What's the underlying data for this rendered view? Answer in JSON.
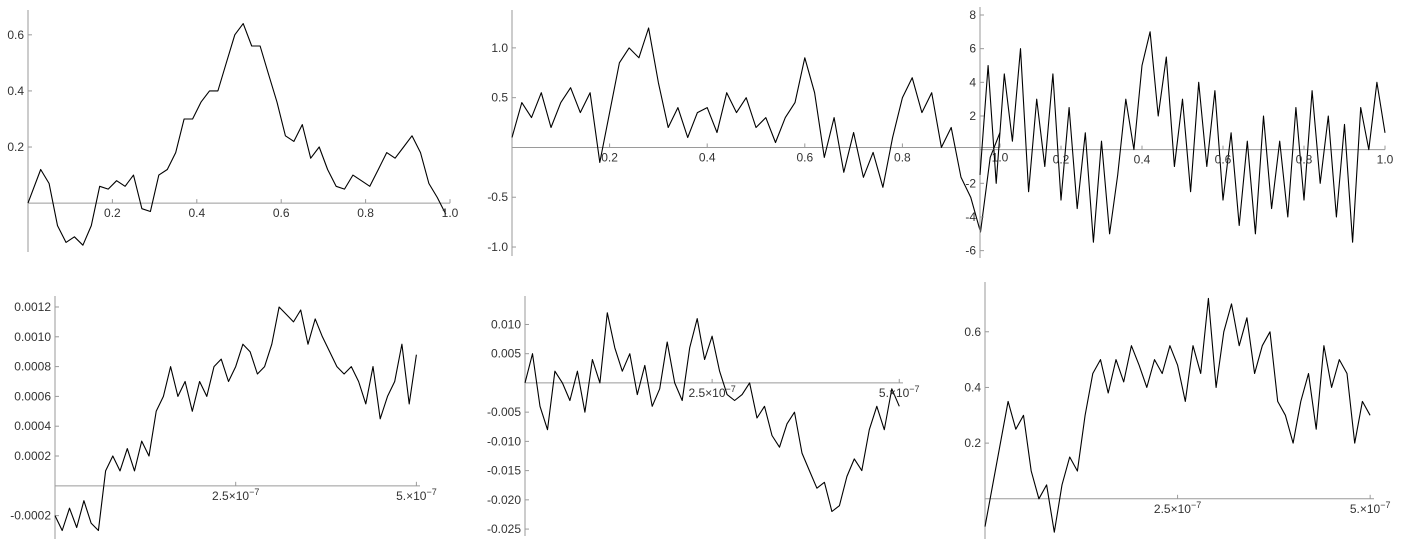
{
  "chart_data": [
    {
      "type": "line",
      "xlim": [
        0,
        1.0
      ],
      "ylim": [
        -0.16,
        0.66
      ],
      "x_axis_at_y": 0,
      "x_ticks": [
        0.2,
        0.4,
        0.6,
        0.8,
        1.0
      ],
      "x_tick_labels": [
        "0.2",
        "0.4",
        "0.6",
        "0.8",
        "1.0"
      ],
      "y_ticks": [
        0.2,
        0.4,
        0.6
      ],
      "y_tick_labels": [
        "0.2",
        "0.4",
        "0.6"
      ],
      "series": [
        {
          "x": [
            0.0,
            0.03,
            0.05,
            0.07,
            0.09,
            0.11,
            0.13,
            0.15,
            0.17,
            0.19,
            0.21,
            0.23,
            0.25,
            0.27,
            0.29,
            0.31,
            0.33,
            0.35,
            0.37,
            0.39,
            0.41,
            0.43,
            0.45,
            0.47,
            0.49,
            0.51,
            0.53,
            0.55,
            0.57,
            0.59,
            0.61,
            0.63,
            0.65,
            0.67,
            0.69,
            0.71,
            0.73,
            0.75,
            0.77,
            0.79,
            0.81,
            0.83,
            0.85,
            0.87,
            0.89,
            0.91,
            0.93,
            0.95,
            0.97,
            0.99
          ],
          "y": [
            0.0,
            0.12,
            0.07,
            -0.08,
            -0.14,
            -0.12,
            -0.15,
            -0.08,
            0.06,
            0.05,
            0.08,
            0.06,
            0.1,
            -0.02,
            -0.03,
            0.1,
            0.12,
            0.18,
            0.3,
            0.3,
            0.36,
            0.4,
            0.4,
            0.5,
            0.6,
            0.64,
            0.56,
            0.56,
            0.46,
            0.36,
            0.24,
            0.22,
            0.28,
            0.16,
            0.2,
            0.12,
            0.06,
            0.05,
            0.1,
            0.08,
            0.06,
            0.12,
            0.18,
            0.16,
            0.2,
            0.24,
            0.18,
            0.07,
            0.02,
            -0.04
          ]
        }
      ]
    },
    {
      "type": "line",
      "xlim": [
        0,
        1.0
      ],
      "ylim": [
        -1.05,
        1.3
      ],
      "x_axis_at_y": 0,
      "x_ticks": [
        0.2,
        0.4,
        0.6,
        0.8,
        1.0
      ],
      "x_tick_labels": [
        "0.2",
        "0.4",
        "0.6",
        "0.8",
        "1.0"
      ],
      "y_ticks": [
        -1.0,
        -0.5,
        0.5,
        1.0
      ],
      "y_tick_labels": [
        "-1.0",
        "-0.5",
        "0.5",
        "1.0"
      ],
      "series": [
        {
          "x": [
            0.0,
            0.02,
            0.04,
            0.06,
            0.08,
            0.1,
            0.12,
            0.14,
            0.16,
            0.18,
            0.2,
            0.22,
            0.24,
            0.26,
            0.28,
            0.3,
            0.32,
            0.34,
            0.36,
            0.38,
            0.4,
            0.42,
            0.44,
            0.46,
            0.48,
            0.5,
            0.52,
            0.54,
            0.56,
            0.58,
            0.6,
            0.62,
            0.64,
            0.66,
            0.68,
            0.7,
            0.72,
            0.74,
            0.76,
            0.78,
            0.8,
            0.82,
            0.84,
            0.86,
            0.88,
            0.9,
            0.92,
            0.94,
            0.96,
            0.98,
            1.0
          ],
          "y": [
            0.1,
            0.45,
            0.3,
            0.55,
            0.2,
            0.45,
            0.6,
            0.35,
            0.55,
            -0.15,
            0.35,
            0.85,
            1.0,
            0.9,
            1.2,
            0.65,
            0.2,
            0.4,
            0.1,
            0.35,
            0.4,
            0.15,
            0.55,
            0.35,
            0.5,
            0.2,
            0.3,
            0.05,
            0.3,
            0.45,
            0.9,
            0.55,
            -0.1,
            0.3,
            -0.25,
            0.15,
            -0.3,
            -0.05,
            -0.4,
            0.1,
            0.5,
            0.7,
            0.35,
            0.55,
            0.0,
            0.2,
            -0.3,
            -0.5,
            -0.85,
            -0.1,
            0.15
          ]
        }
      ]
    },
    {
      "type": "line",
      "xlim": [
        0,
        1.0
      ],
      "ylim": [
        -6.2,
        8.0
      ],
      "x_axis_at_y": 0,
      "x_ticks": [
        0.2,
        0.4,
        0.6,
        0.8,
        1.0
      ],
      "x_tick_labels": [
        "0.2",
        "0.4",
        "0.6",
        "0.8",
        "1.0"
      ],
      "y_ticks": [
        -6,
        -4,
        -2,
        2,
        4,
        6,
        8
      ],
      "y_tick_labels": [
        "-6",
        "-4",
        "-2",
        "2",
        "4",
        "6",
        "8"
      ],
      "series": [
        {
          "x": [
            0.0,
            0.02,
            0.04,
            0.06,
            0.08,
            0.1,
            0.12,
            0.14,
            0.16,
            0.18,
            0.2,
            0.22,
            0.24,
            0.26,
            0.28,
            0.3,
            0.32,
            0.34,
            0.36,
            0.38,
            0.4,
            0.42,
            0.44,
            0.46,
            0.48,
            0.5,
            0.52,
            0.54,
            0.56,
            0.58,
            0.6,
            0.62,
            0.64,
            0.66,
            0.68,
            0.7,
            0.72,
            0.74,
            0.76,
            0.78,
            0.8,
            0.82,
            0.84,
            0.86,
            0.88,
            0.9,
            0.92,
            0.94,
            0.96,
            0.98,
            1.0
          ],
          "y": [
            -1.5,
            5.0,
            -2.0,
            4.5,
            0.5,
            6.0,
            -2.5,
            3.0,
            -1.0,
            4.5,
            -3.0,
            2.5,
            -3.5,
            1.0,
            -5.5,
            0.5,
            -5.0,
            -1.5,
            3.0,
            0.0,
            5.0,
            7.0,
            2.0,
            5.5,
            -1.0,
            3.0,
            -2.5,
            4.0,
            -1.0,
            3.5,
            -3.0,
            1.0,
            -4.5,
            0.5,
            -5.0,
            2.0,
            -3.5,
            0.5,
            -4.0,
            2.5,
            -3.0,
            3.5,
            -2.0,
            2.0,
            -4.0,
            1.5,
            -5.5,
            2.5,
            0.0,
            4.0,
            1.0
          ]
        }
      ]
    },
    {
      "type": "line",
      "xlim": [
        0,
        5.05e-07
      ],
      "ylim": [
        -0.00033,
        0.00122
      ],
      "x_axis_at_y": 0,
      "x_ticks": [
        2.5e-07,
        5e-07
      ],
      "x_tick_labels": [
        "2.5×10",
        "5.×10"
      ],
      "x_tick_exponent": "−7",
      "y_ticks": [
        -0.0002,
        0.0002,
        0.0004,
        0.0006,
        0.0008,
        0.001,
        0.0012
      ],
      "y_tick_labels": [
        "-0.0002",
        "0.0002",
        "0.0004",
        "0.0006",
        "0.0008",
        "0.0010",
        "0.0012"
      ],
      "series": [
        {
          "x": [
            0.0,
            1e-08,
            2e-08,
            3e-08,
            4e-08,
            5e-08,
            6e-08,
            7e-08,
            8e-08,
            9e-08,
            1e-07,
            1.1e-07,
            1.2e-07,
            1.3e-07,
            1.4e-07,
            1.5e-07,
            1.6e-07,
            1.7e-07,
            1.8e-07,
            1.9e-07,
            2e-07,
            2.1e-07,
            2.2e-07,
            2.3e-07,
            2.4e-07,
            2.5e-07,
            2.6e-07,
            2.7e-07,
            2.8e-07,
            2.9e-07,
            3e-07,
            3.1e-07,
            3.2e-07,
            3.3e-07,
            3.4e-07,
            3.5e-07,
            3.6e-07,
            3.7e-07,
            3.8e-07,
            3.9e-07,
            4e-07,
            4.1e-07,
            4.2e-07,
            4.3e-07,
            4.4e-07,
            4.5e-07,
            4.6e-07,
            4.7e-07,
            4.8e-07,
            4.9e-07,
            5e-07
          ],
          "y": [
            -0.0002,
            -0.0003,
            -0.00015,
            -0.00028,
            -0.0001,
            -0.00025,
            -0.0003,
            0.0001,
            0.0002,
            0.0001,
            0.00025,
            0.0001,
            0.0003,
            0.0002,
            0.0005,
            0.0006,
            0.0008,
            0.0006,
            0.0007,
            0.0005,
            0.0007,
            0.0006,
            0.0008,
            0.00085,
            0.0007,
            0.0008,
            0.00095,
            0.0009,
            0.00075,
            0.0008,
            0.00095,
            0.0012,
            0.00115,
            0.0011,
            0.00118,
            0.00095,
            0.00112,
            0.001,
            0.0009,
            0.0008,
            0.00075,
            0.0008,
            0.0007,
            0.00055,
            0.0008,
            0.00045,
            0.0006,
            0.0007,
            0.00095,
            0.00055,
            0.00088
          ]
        }
      ]
    },
    {
      "type": "line",
      "xlim": [
        0,
        5.05e-07
      ],
      "ylim": [
        -0.0255,
        0.0135
      ],
      "x_axis_at_y": 0,
      "x_ticks": [
        2.5e-07,
        5e-07
      ],
      "x_tick_labels": [
        "2.5×10",
        "5.×10"
      ],
      "x_tick_exponent": "−7",
      "y_ticks": [
        -0.025,
        -0.02,
        -0.015,
        -0.01,
        -0.005,
        0.005,
        0.01
      ],
      "y_tick_labels": [
        "-0.025",
        "-0.020",
        "-0.015",
        "-0.010",
        "-0.005",
        "0.005",
        "0.010"
      ],
      "series": [
        {
          "x": [
            0.0,
            1e-08,
            2e-08,
            3e-08,
            4e-08,
            5e-08,
            6e-08,
            7e-08,
            8e-08,
            9e-08,
            1e-07,
            1.1e-07,
            1.2e-07,
            1.3e-07,
            1.4e-07,
            1.5e-07,
            1.6e-07,
            1.7e-07,
            1.8e-07,
            1.9e-07,
            2e-07,
            2.1e-07,
            2.2e-07,
            2.3e-07,
            2.4e-07,
            2.5e-07,
            2.6e-07,
            2.7e-07,
            2.8e-07,
            2.9e-07,
            3e-07,
            3.1e-07,
            3.2e-07,
            3.3e-07,
            3.4e-07,
            3.5e-07,
            3.6e-07,
            3.7e-07,
            3.8e-07,
            3.9e-07,
            4e-07,
            4.1e-07,
            4.2e-07,
            4.3e-07,
            4.4e-07,
            4.5e-07,
            4.6e-07,
            4.7e-07,
            4.8e-07,
            4.9e-07,
            5e-07
          ],
          "y": [
            0.0,
            0.005,
            -0.004,
            -0.008,
            0.002,
            0.0,
            -0.003,
            0.002,
            -0.005,
            0.004,
            0.0,
            0.012,
            0.006,
            0.002,
            0.005,
            -0.002,
            0.003,
            -0.004,
            -0.001,
            0.007,
            0.0,
            -0.003,
            0.006,
            0.011,
            0.004,
            0.008,
            0.002,
            -0.002,
            -0.003,
            -0.002,
            0.0,
            -0.006,
            -0.004,
            -0.009,
            -0.011,
            -0.007,
            -0.005,
            -0.012,
            -0.015,
            -0.018,
            -0.017,
            -0.022,
            -0.021,
            -0.016,
            -0.013,
            -0.015,
            -0.008,
            -0.004,
            -0.008,
            -0.001,
            -0.004
          ]
        }
      ]
    },
    {
      "type": "line",
      "xlim": [
        0,
        5.05e-07
      ],
      "ylim": [
        -0.13,
        0.75
      ],
      "x_axis_at_y": 0,
      "x_ticks": [
        2.5e-07,
        5e-07
      ],
      "x_tick_labels": [
        "2.5×10",
        "5.×10"
      ],
      "x_tick_exponent": "−7",
      "y_ticks": [
        0.2,
        0.4,
        0.6
      ],
      "y_tick_labels": [
        "0.2",
        "0.4",
        "0.6"
      ],
      "series": [
        {
          "x": [
            0.0,
            1e-08,
            2e-08,
            3e-08,
            4e-08,
            5e-08,
            6e-08,
            7e-08,
            8e-08,
            9e-08,
            1e-07,
            1.1e-07,
            1.2e-07,
            1.3e-07,
            1.4e-07,
            1.5e-07,
            1.6e-07,
            1.7e-07,
            1.8e-07,
            1.9e-07,
            2e-07,
            2.1e-07,
            2.2e-07,
            2.3e-07,
            2.4e-07,
            2.5e-07,
            2.6e-07,
            2.7e-07,
            2.8e-07,
            2.9e-07,
            3e-07,
            3.1e-07,
            3.2e-07,
            3.3e-07,
            3.4e-07,
            3.5e-07,
            3.6e-07,
            3.7e-07,
            3.8e-07,
            3.9e-07,
            4e-07,
            4.1e-07,
            4.2e-07,
            4.3e-07,
            4.4e-07,
            4.5e-07,
            4.6e-07,
            4.7e-07,
            4.8e-07,
            4.9e-07,
            5e-07
          ],
          "y": [
            -0.1,
            0.05,
            0.2,
            0.35,
            0.25,
            0.3,
            0.1,
            0.0,
            0.05,
            -0.12,
            0.05,
            0.15,
            0.1,
            0.3,
            0.45,
            0.5,
            0.38,
            0.5,
            0.42,
            0.55,
            0.48,
            0.4,
            0.5,
            0.45,
            0.55,
            0.48,
            0.35,
            0.55,
            0.45,
            0.72,
            0.4,
            0.6,
            0.7,
            0.55,
            0.65,
            0.45,
            0.55,
            0.6,
            0.35,
            0.3,
            0.2,
            0.35,
            0.45,
            0.25,
            0.55,
            0.4,
            0.5,
            0.45,
            0.2,
            0.35,
            0.3
          ]
        }
      ]
    }
  ]
}
